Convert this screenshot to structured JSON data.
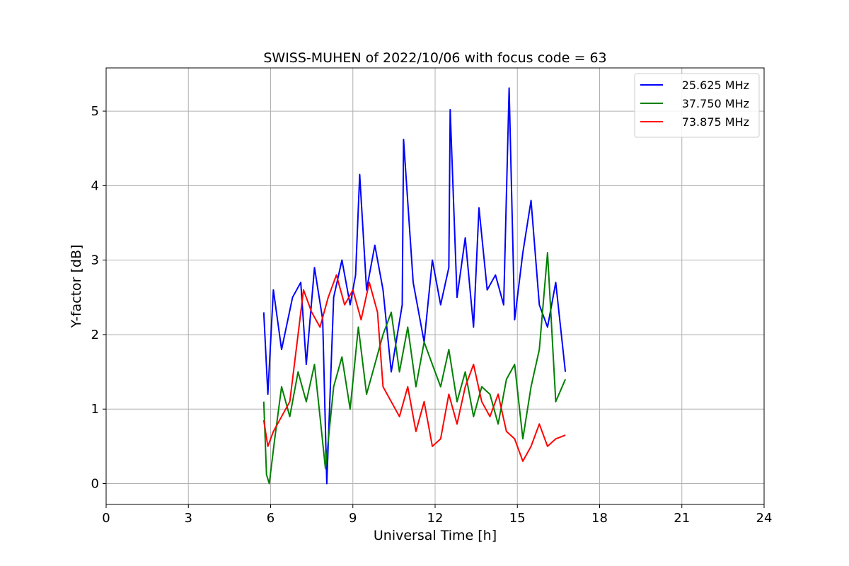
{
  "chart_data": {
    "type": "line",
    "title": "SWISS-MUHEN of 2022/10/06 with focus code = 63",
    "xlabel": "Universal Time [h]",
    "ylabel": "Y-factor [dB]",
    "xlim": [
      0,
      24
    ],
    "ylim": [
      -0.28,
      5.58
    ],
    "xticks": [
      0,
      3,
      6,
      9,
      12,
      15,
      18,
      21,
      24
    ],
    "yticks": [
      0,
      1,
      2,
      3,
      4,
      5
    ],
    "grid": true,
    "legend_position": "top-right",
    "series": [
      {
        "name": "25.625 MHz",
        "color": "#0000ff",
        "x": [
          5.75,
          5.9,
          6.1,
          6.4,
          6.8,
          7.1,
          7.3,
          7.6,
          7.9,
          8.05,
          8.3,
          8.6,
          8.9,
          9.1,
          9.25,
          9.5,
          9.8,
          10.1,
          10.4,
          10.8,
          10.85,
          11.2,
          11.6,
          11.9,
          12.2,
          12.5,
          12.55,
          12.8,
          13.1,
          13.4,
          13.6,
          13.9,
          14.2,
          14.5,
          14.7,
          14.9,
          15.2,
          15.5,
          15.8,
          16.1,
          16.4,
          16.75
        ],
        "values": [
          2.3,
          1.2,
          2.6,
          1.8,
          2.5,
          2.7,
          1.6,
          2.9,
          2.2,
          0.0,
          2.5,
          3.0,
          2.4,
          2.8,
          4.15,
          2.6,
          3.2,
          2.6,
          1.5,
          2.4,
          4.62,
          2.7,
          1.9,
          3.0,
          2.4,
          2.9,
          5.02,
          2.5,
          3.3,
          2.1,
          3.7,
          2.6,
          2.8,
          2.4,
          5.31,
          2.2,
          3.1,
          3.8,
          2.4,
          2.1,
          2.7,
          1.5
        ]
      },
      {
        "name": "37.750 MHz",
        "color": "#008000",
        "x": [
          5.75,
          5.85,
          5.95,
          6.15,
          6.4,
          6.7,
          7.0,
          7.3,
          7.6,
          7.8,
          8.0,
          8.3,
          8.6,
          8.9,
          9.2,
          9.5,
          9.8,
          10.1,
          10.4,
          10.7,
          11.0,
          11.3,
          11.6,
          11.9,
          12.2,
          12.5,
          12.8,
          13.1,
          13.4,
          13.7,
          14.0,
          14.3,
          14.6,
          14.9,
          15.2,
          15.5,
          15.8,
          16.1,
          16.4,
          16.75
        ],
        "values": [
          1.1,
          0.12,
          0.0,
          0.6,
          1.3,
          0.9,
          1.5,
          1.1,
          1.6,
          0.9,
          0.2,
          1.3,
          1.7,
          1.0,
          2.1,
          1.2,
          1.6,
          2.0,
          2.3,
          1.5,
          2.1,
          1.3,
          1.9,
          1.6,
          1.3,
          1.8,
          1.1,
          1.5,
          0.9,
          1.3,
          1.2,
          0.8,
          1.4,
          1.6,
          0.6,
          1.3,
          1.8,
          3.1,
          1.1,
          1.4
        ]
      },
      {
        "name": "73.875 MHz",
        "color": "#ff0000",
        "x": [
          5.75,
          5.9,
          6.1,
          6.4,
          6.7,
          7.0,
          7.2,
          7.5,
          7.8,
          8.1,
          8.4,
          8.7,
          9.0,
          9.3,
          9.6,
          9.9,
          10.1,
          10.4,
          10.7,
          11.0,
          11.3,
          11.6,
          11.9,
          12.2,
          12.5,
          12.8,
          13.1,
          13.4,
          13.7,
          14.0,
          14.3,
          14.6,
          14.9,
          15.2,
          15.5,
          15.8,
          16.1,
          16.4,
          16.75
        ],
        "values": [
          0.85,
          0.5,
          0.7,
          0.9,
          1.1,
          2.0,
          2.6,
          2.3,
          2.1,
          2.5,
          2.8,
          2.4,
          2.6,
          2.2,
          2.7,
          2.3,
          1.3,
          1.1,
          0.9,
          1.3,
          0.7,
          1.1,
          0.5,
          0.6,
          1.2,
          0.8,
          1.3,
          1.6,
          1.1,
          0.9,
          1.2,
          0.7,
          0.6,
          0.3,
          0.5,
          0.8,
          0.5,
          0.6,
          0.65
        ]
      }
    ]
  }
}
